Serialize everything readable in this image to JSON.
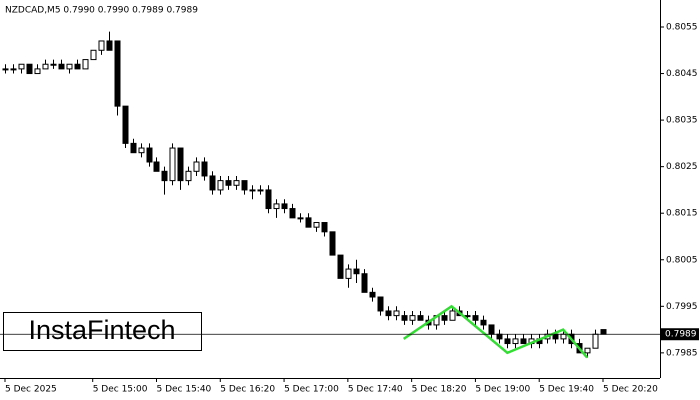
{
  "chart_data": {
    "type": "candlestick",
    "title": "NZDCAD,M5  0.7990 0.7990 0.7989 0.7989",
    "logo": "InstaFintech",
    "categories": [
      "5 Dec 2025",
      null,
      null,
      null,
      null,
      null,
      null,
      null,
      null,
      null,
      null,
      "5 Dec 15:00",
      null,
      null,
      null,
      null,
      null,
      null,
      null,
      "5 Dec 15:40",
      null,
      null,
      null,
      null,
      null,
      null,
      null,
      "5 Dec 16:20",
      null,
      null,
      null,
      null,
      null,
      null,
      null,
      "5 Dec 17:00",
      null,
      null,
      null,
      null,
      null,
      null,
      null,
      "5 Dec 17:40",
      null,
      null,
      null,
      null,
      null,
      null,
      null,
      "5 Dec 18:20",
      null,
      null,
      null,
      null,
      null,
      null,
      null,
      "5 Dec 19:00",
      null,
      null,
      null,
      null,
      null,
      null,
      null,
      "5 Dec 19:40",
      null,
      null,
      null,
      null,
      null,
      null,
      null,
      "5 Dec 20:20"
    ],
    "open": [
      0.8046,
      0.8046,
      0.8046,
      0.8047,
      0.8045,
      0.8046,
      0.8047,
      0.8047,
      0.8046,
      0.8047,
      0.8046,
      0.8048,
      0.805,
      0.8052,
      0.8052,
      0.8038,
      0.803,
      0.8028,
      0.8029,
      0.8026,
      0.8024,
      0.8022,
      0.8029,
      0.8022,
      0.8024,
      0.8026,
      0.8023,
      0.802,
      0.8022,
      0.8021,
      0.8022,
      0.802,
      0.802,
      0.802,
      0.8016,
      0.8017,
      0.8016,
      0.8014,
      0.8014,
      0.8012,
      0.8013,
      0.8011,
      0.8006,
      0.8001,
      0.8003,
      0.8002,
      0.7998,
      0.7997,
      0.7994,
      0.7993,
      0.7993,
      0.7992,
      0.7993,
      0.7992,
      0.7991,
      0.7993,
      0.7992,
      0.7994,
      0.7993,
      0.7993,
      0.7992,
      0.7991,
      0.7989,
      0.7988,
      0.7987,
      0.7988,
      0.7987,
      0.7988,
      0.7988,
      0.7989,
      0.7988,
      0.7989,
      0.7987,
      0.7985,
      0.7986,
      0.799
    ],
    "high": [
      0.8047,
      0.8047,
      0.8047,
      0.8047,
      0.8047,
      0.8048,
      0.8048,
      0.8048,
      0.8047,
      0.8048,
      0.8048,
      0.805,
      0.8052,
      0.8054,
      0.8052,
      0.8038,
      0.8031,
      0.803,
      0.803,
      0.8027,
      0.8025,
      0.803,
      0.8029,
      0.8025,
      0.8027,
      0.8027,
      0.8024,
      0.8023,
      0.8023,
      0.8023,
      0.8022,
      0.8021,
      0.8021,
      0.8021,
      0.8018,
      0.8018,
      0.8017,
      0.8015,
      0.8015,
      0.8013,
      0.8013,
      0.8011,
      0.8006,
      0.8004,
      0.8005,
      0.8003,
      0.7999,
      0.7997,
      0.7995,
      0.7995,
      0.7994,
      0.7994,
      0.7994,
      0.7993,
      0.7993,
      0.7994,
      0.7995,
      0.7995,
      0.7994,
      0.7994,
      0.7993,
      0.7991,
      0.799,
      0.7989,
      0.7989,
      0.7989,
      0.7989,
      0.7989,
      0.799,
      0.799,
      0.799,
      0.799,
      0.7988,
      0.7986,
      0.799,
      0.799
    ],
    "low": [
      0.8045,
      0.8045,
      0.8045,
      0.8045,
      0.8045,
      0.8046,
      0.8046,
      0.8046,
      0.8045,
      0.8046,
      0.8046,
      0.8048,
      0.8049,
      0.805,
      0.8036,
      0.8029,
      0.8028,
      0.8027,
      0.8025,
      0.8024,
      0.8019,
      0.8021,
      0.802,
      0.8021,
      0.8023,
      0.8022,
      0.8019,
      0.8019,
      0.802,
      0.802,
      0.8019,
      0.8018,
      0.8019,
      0.8015,
      0.8014,
      0.8015,
      0.8014,
      0.8013,
      0.8012,
      0.8011,
      0.801,
      0.8006,
      0.8001,
      0.7999,
      0.8,
      0.7998,
      0.7996,
      0.7993,
      0.7992,
      0.7992,
      0.7991,
      0.7991,
      0.7992,
      0.799,
      0.799,
      0.7991,
      0.7992,
      0.7993,
      0.7992,
      0.7991,
      0.799,
      0.7988,
      0.7987,
      0.7986,
      0.7986,
      0.7987,
      0.7986,
      0.7986,
      0.7987,
      0.7987,
      0.7987,
      0.7986,
      0.7985,
      0.7984,
      0.7986,
      0.7989
    ],
    "close": [
      0.8046,
      0.8046,
      0.8047,
      0.8045,
      0.8046,
      0.8047,
      0.8047,
      0.8046,
      0.8047,
      0.8046,
      0.8048,
      0.805,
      0.8052,
      0.805,
      0.8038,
      0.803,
      0.8028,
      0.8029,
      0.8026,
      0.8024,
      0.8022,
      0.8029,
      0.8022,
      0.8024,
      0.8026,
      0.8023,
      0.802,
      0.8022,
      0.8021,
      0.8022,
      0.802,
      0.802,
      0.802,
      0.8016,
      0.8017,
      0.8016,
      0.8014,
      0.8014,
      0.8012,
      0.8013,
      0.8011,
      0.8006,
      0.8001,
      0.8003,
      0.8002,
      0.7998,
      0.7997,
      0.7994,
      0.7993,
      0.7994,
      0.7992,
      0.7993,
      0.7992,
      0.7991,
      0.7993,
      0.7992,
      0.7994,
      0.7993,
      0.7993,
      0.7992,
      0.7991,
      0.7989,
      0.7988,
      0.7987,
      0.7988,
      0.7987,
      0.7988,
      0.7987,
      0.7989,
      0.7988,
      0.7989,
      0.7987,
      0.7985,
      0.7986,
      0.7989,
      0.7989
    ],
    "ylim": [
      0.79796,
      0.80608
    ],
    "yticks": [
      0.8055,
      0.8045,
      0.8035,
      0.8025,
      0.8015,
      0.8005,
      0.7995,
      0.7985
    ],
    "current_price": 0.7989,
    "pattern": {
      "color": "#33dd33",
      "x": [
        50,
        56,
        63,
        70,
        73
      ],
      "values": [
        0.7988,
        0.7995,
        0.7985,
        0.799,
        0.7984
      ]
    },
    "up_color": "#ffffff",
    "down_color": "#000000"
  }
}
